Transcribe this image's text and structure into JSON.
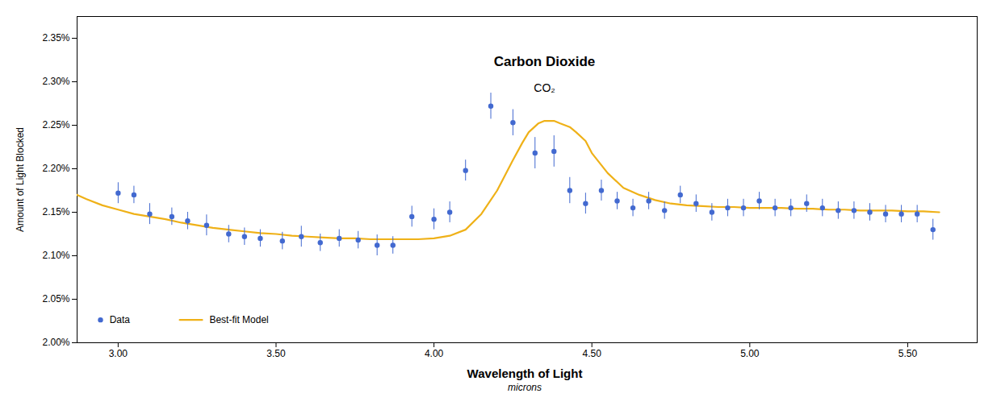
{
  "chart_data": {
    "type": "line",
    "annotations": [
      {
        "text": "Carbon Dioxide",
        "x": 4.35,
        "y": 2.318
      },
      {
        "text": "CO₂",
        "x": 4.35,
        "y": 2.298
      }
    ],
    "xlabel": "Wavelength of Light",
    "xlabel_sub": "microns",
    "ylabel": "Amount of Light Blocked",
    "xlim": [
      2.87,
      5.72
    ],
    "ylim": [
      2.0,
      2.375
    ],
    "xticks": [
      {
        "value": 3.0,
        "label": "3.00"
      },
      {
        "value": 3.5,
        "label": "3.50"
      },
      {
        "value": 4.0,
        "label": "4.00"
      },
      {
        "value": 4.5,
        "label": "4.50"
      },
      {
        "value": 5.0,
        "label": "5.00"
      },
      {
        "value": 5.5,
        "label": "5.50"
      }
    ],
    "yticks": [
      {
        "value": 2.0,
        "label": "2.00%"
      },
      {
        "value": 2.05,
        "label": "2.05%"
      },
      {
        "value": 2.1,
        "label": "2.10%"
      },
      {
        "value": 2.15,
        "label": "2.15%"
      },
      {
        "value": 2.2,
        "label": "2.20%"
      },
      {
        "value": 2.25,
        "label": "2.25%"
      },
      {
        "value": 2.3,
        "label": "2.30%"
      },
      {
        "value": 2.35,
        "label": "2.35%"
      }
    ],
    "grid": false,
    "legend": "lower left",
    "series": [
      {
        "name": "Data",
        "type": "scatter",
        "marker": "circle",
        "x": [
          3.0,
          3.05,
          3.1,
          3.17,
          3.22,
          3.28,
          3.35,
          3.4,
          3.45,
          3.52,
          3.58,
          3.64,
          3.7,
          3.76,
          3.82,
          3.87,
          3.93,
          4.0,
          4.05,
          4.1,
          4.18,
          4.25,
          4.32,
          4.38,
          4.43,
          4.48,
          4.53,
          4.58,
          4.63,
          4.68,
          4.73,
          4.78,
          4.83,
          4.88,
          4.93,
          4.98,
          5.03,
          5.08,
          5.13,
          5.18,
          5.23,
          5.28,
          5.33,
          5.38,
          5.43,
          5.48,
          5.53,
          5.58
        ],
        "values": [
          2.172,
          2.17,
          2.148,
          2.145,
          2.14,
          2.135,
          2.125,
          2.122,
          2.12,
          2.117,
          2.122,
          2.115,
          2.12,
          2.118,
          2.112,
          2.112,
          2.145,
          2.142,
          2.15,
          2.198,
          2.272,
          2.253,
          2.218,
          2.22,
          2.175,
          2.16,
          2.175,
          2.163,
          2.155,
          2.163,
          2.152,
          2.17,
          2.16,
          2.15,
          2.155,
          2.155,
          2.163,
          2.155,
          2.155,
          2.16,
          2.155,
          2.152,
          2.152,
          2.15,
          2.148,
          2.148,
          2.148,
          2.13
        ],
        "errors": [
          0.012,
          0.01,
          0.012,
          0.01,
          0.01,
          0.012,
          0.01,
          0.01,
          0.01,
          0.01,
          0.012,
          0.01,
          0.01,
          0.01,
          0.012,
          0.01,
          0.012,
          0.012,
          0.012,
          0.012,
          0.015,
          0.015,
          0.018,
          0.018,
          0.015,
          0.012,
          0.012,
          0.01,
          0.01,
          0.01,
          0.01,
          0.01,
          0.01,
          0.01,
          0.01,
          0.01,
          0.01,
          0.01,
          0.01,
          0.01,
          0.01,
          0.01,
          0.01,
          0.01,
          0.01,
          0.01,
          0.01,
          0.012
        ]
      },
      {
        "name": "Best-fit Model",
        "type": "line",
        "line_style": "solid",
        "x": [
          2.87,
          2.9,
          2.95,
          3.0,
          3.05,
          3.1,
          3.15,
          3.2,
          3.25,
          3.3,
          3.35,
          3.4,
          3.45,
          3.5,
          3.55,
          3.6,
          3.65,
          3.7,
          3.75,
          3.8,
          3.85,
          3.9,
          3.95,
          4.0,
          4.05,
          4.1,
          4.15,
          4.2,
          4.25,
          4.28,
          4.3,
          4.33,
          4.35,
          4.38,
          4.4,
          4.43,
          4.45,
          4.48,
          4.5,
          4.55,
          4.6,
          4.65,
          4.7,
          4.75,
          4.8,
          4.85,
          4.9,
          4.95,
          5.0,
          5.05,
          5.1,
          5.15,
          5.2,
          5.25,
          5.3,
          5.35,
          5.4,
          5.45,
          5.5,
          5.55,
          5.6
        ],
        "values": [
          2.17,
          2.165,
          2.158,
          2.153,
          2.148,
          2.145,
          2.142,
          2.138,
          2.135,
          2.132,
          2.13,
          2.128,
          2.126,
          2.125,
          2.123,
          2.122,
          2.121,
          2.12,
          2.12,
          2.119,
          2.119,
          2.119,
          2.119,
          2.12,
          2.123,
          2.13,
          2.148,
          2.175,
          2.21,
          2.23,
          2.242,
          2.252,
          2.255,
          2.255,
          2.252,
          2.248,
          2.242,
          2.232,
          2.218,
          2.195,
          2.178,
          2.17,
          2.164,
          2.16,
          2.158,
          2.157,
          2.156,
          2.156,
          2.155,
          2.155,
          2.155,
          2.154,
          2.154,
          2.153,
          2.153,
          2.152,
          2.152,
          2.152,
          2.151,
          2.151,
          2.15
        ]
      }
    ]
  }
}
